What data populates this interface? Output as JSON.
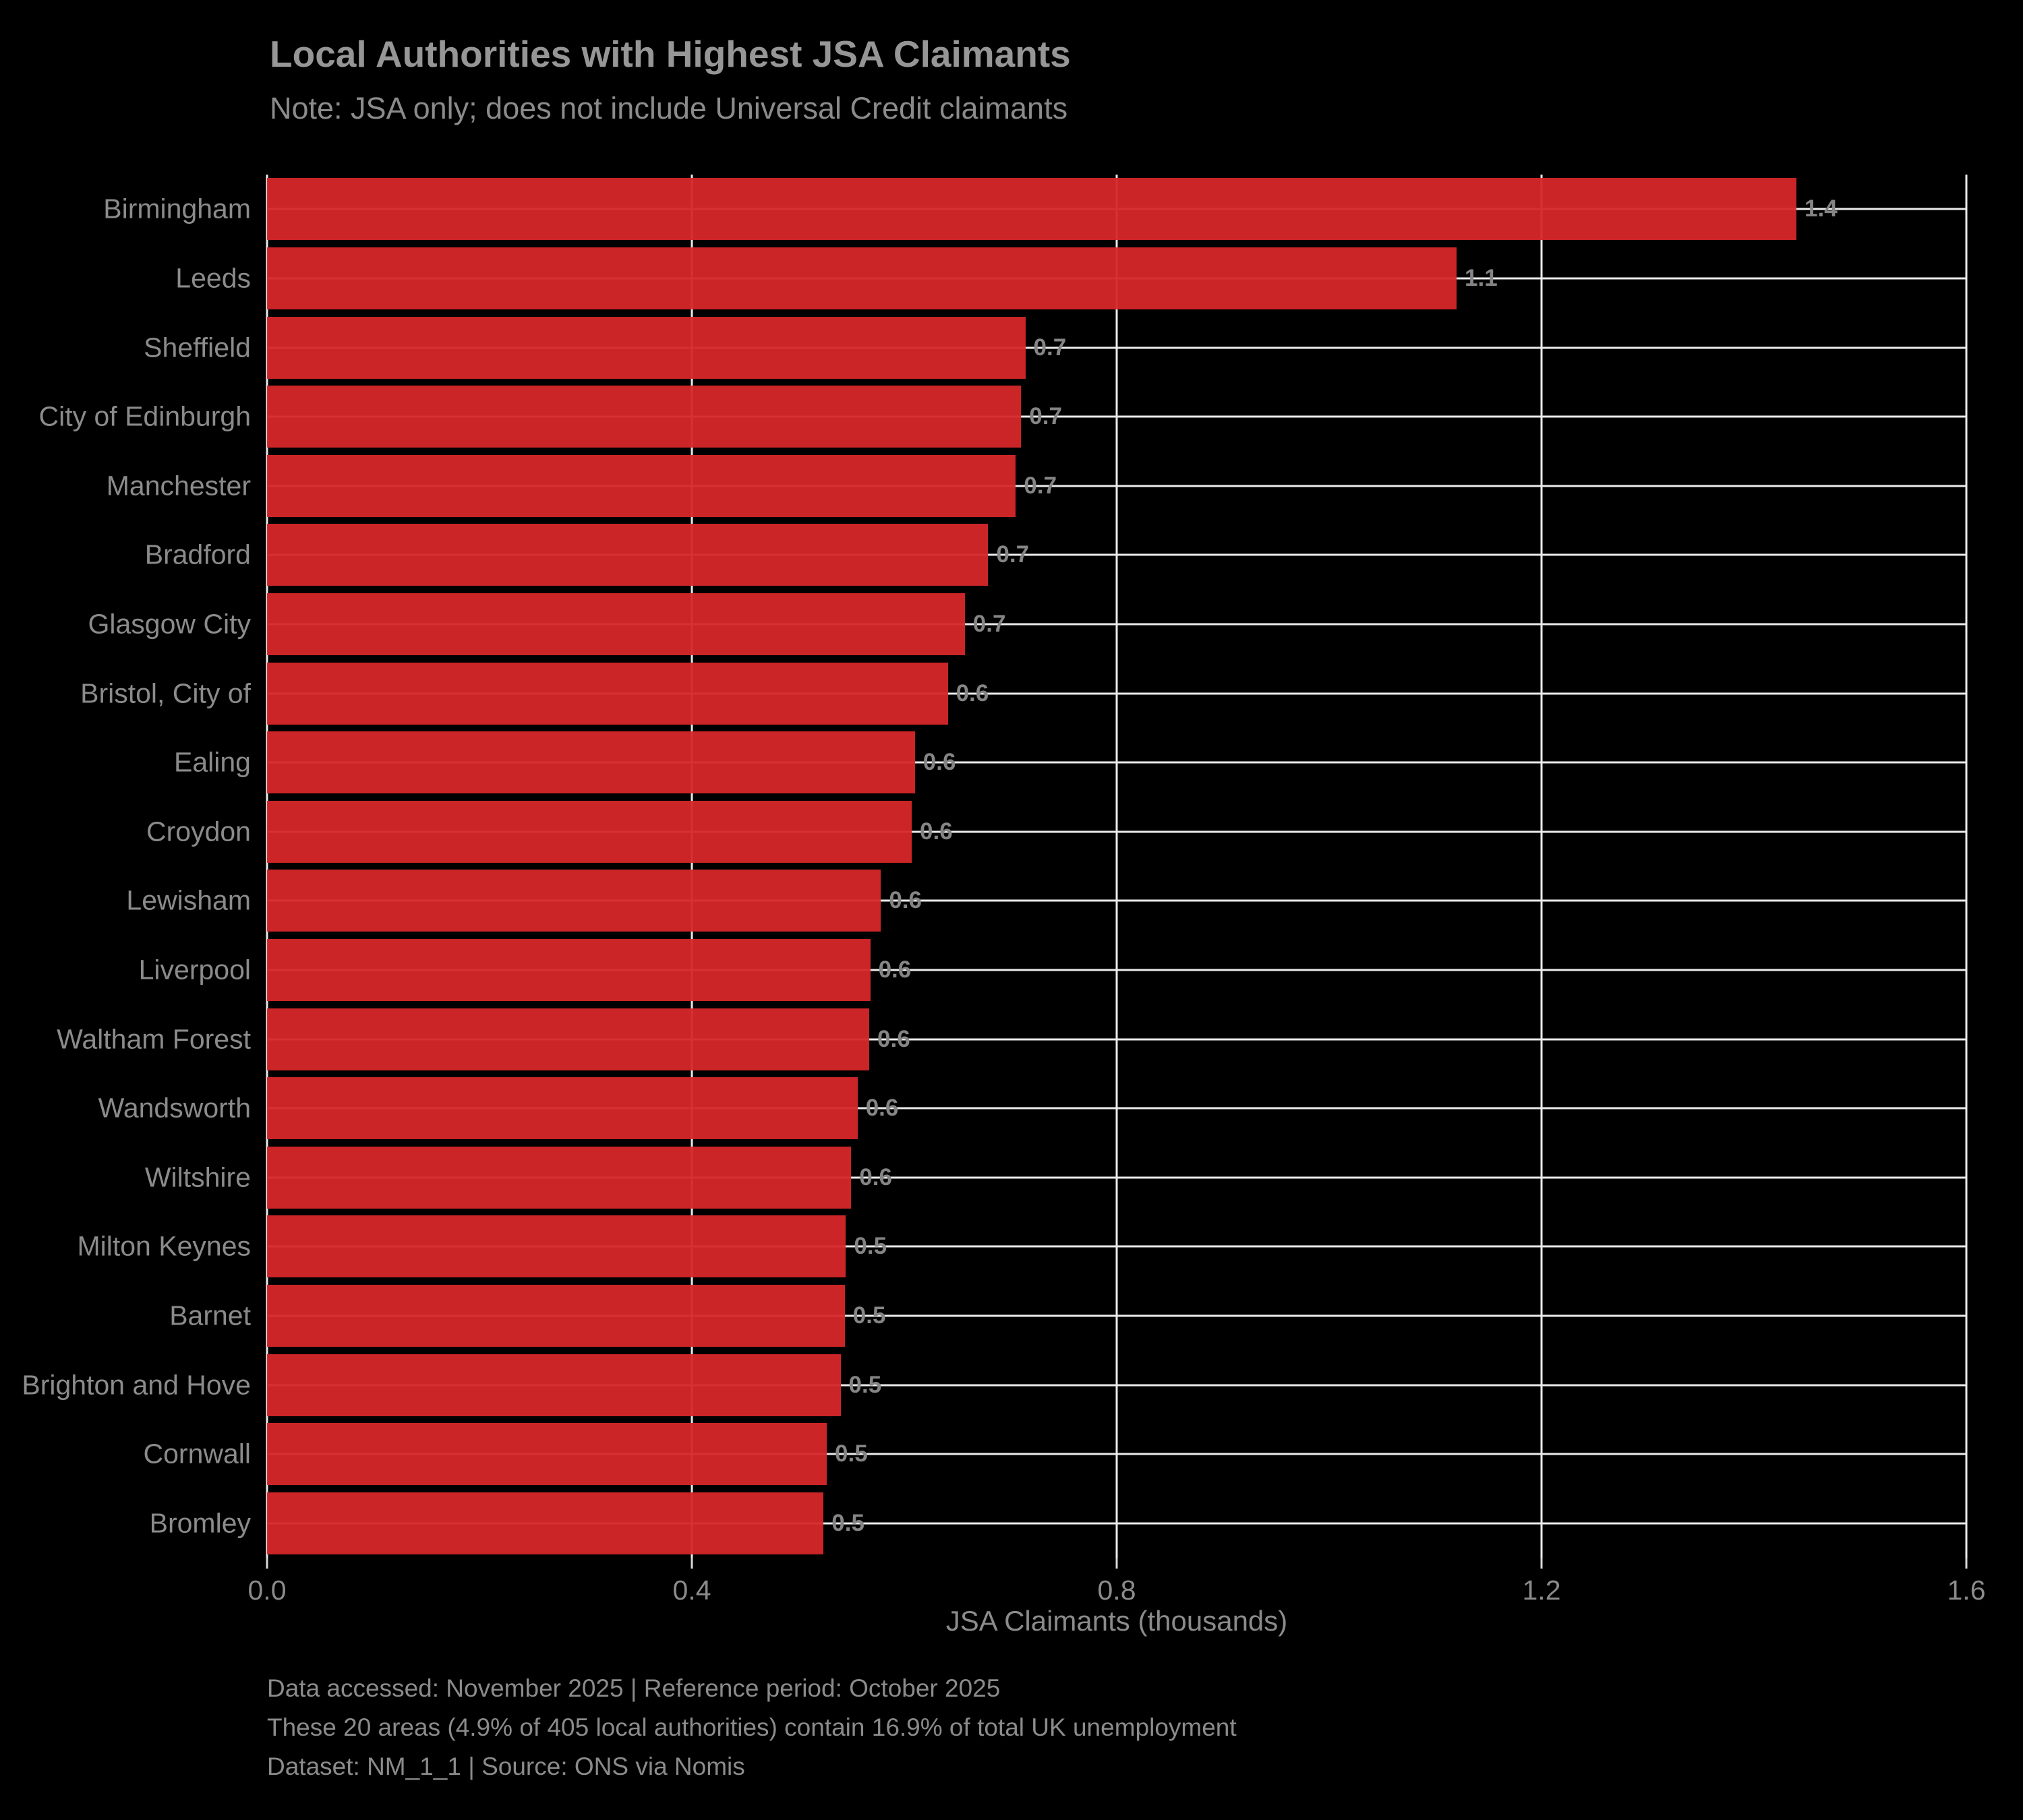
{
  "title": "Local Authorities with Highest JSA Claimants",
  "subtitle": "Note: JSA only; does not include Universal Credit claimants",
  "xaxis_title": "JSA Claimants (thousands)",
  "footer": {
    "line1": "Data accessed: November 2025 | Reference period: October 2025",
    "line2": "These 20 areas (4.9% of 405 local authorities) contain 16.9% of total UK unemployment",
    "line3": "Dataset: NM_1_1 | Source: ONS via Nomis"
  },
  "colors": {
    "background": "#000000",
    "bar": "#d62729",
    "grid": "#ebebeb",
    "title_text": "#969696",
    "body_text": "#8b8b8b",
    "value_label_text": "#858585"
  },
  "chart_data": {
    "type": "bar",
    "orientation": "horizontal",
    "title": "Local Authorities with Highest JSA Claimants",
    "subtitle": "Note: JSA only; does not include Universal Credit claimants",
    "xlabel": "JSA Claimants (thousands)",
    "ylabel": "",
    "xlim": [
      0,
      1.6
    ],
    "xtick_values": [
      0.0,
      0.4,
      0.8,
      1.2,
      1.6
    ],
    "xtick_labels": [
      "0.0",
      "0.4",
      "0.8",
      "1.2",
      "1.6"
    ],
    "grid": true,
    "legend": false,
    "categories": [
      "Birmingham",
      "Leeds",
      "Sheffield",
      "City of Edinburgh",
      "Manchester",
      "Bradford",
      "Glasgow City",
      "Bristol, City of",
      "Ealing",
      "Croydon",
      "Lewisham",
      "Liverpool",
      "Waltham Forest",
      "Wandsworth",
      "Wiltshire",
      "Milton Keynes",
      "Barnet",
      "Brighton and Hove",
      "Cornwall",
      "Bromley"
    ],
    "values": [
      1.44,
      1.12,
      0.714,
      0.71,
      0.705,
      0.679,
      0.657,
      0.641,
      0.61,
      0.607,
      0.578,
      0.568,
      0.567,
      0.556,
      0.55,
      0.545,
      0.544,
      0.54,
      0.527,
      0.524
    ],
    "value_labels": [
      "1.4",
      "1.1",
      "0.7",
      "0.7",
      "0.7",
      "0.7",
      "0.7",
      "0.6",
      "0.6",
      "0.6",
      "0.6",
      "0.6",
      "0.6",
      "0.6",
      "0.6",
      "0.5",
      "0.5",
      "0.5",
      "0.5",
      "0.5"
    ]
  }
}
